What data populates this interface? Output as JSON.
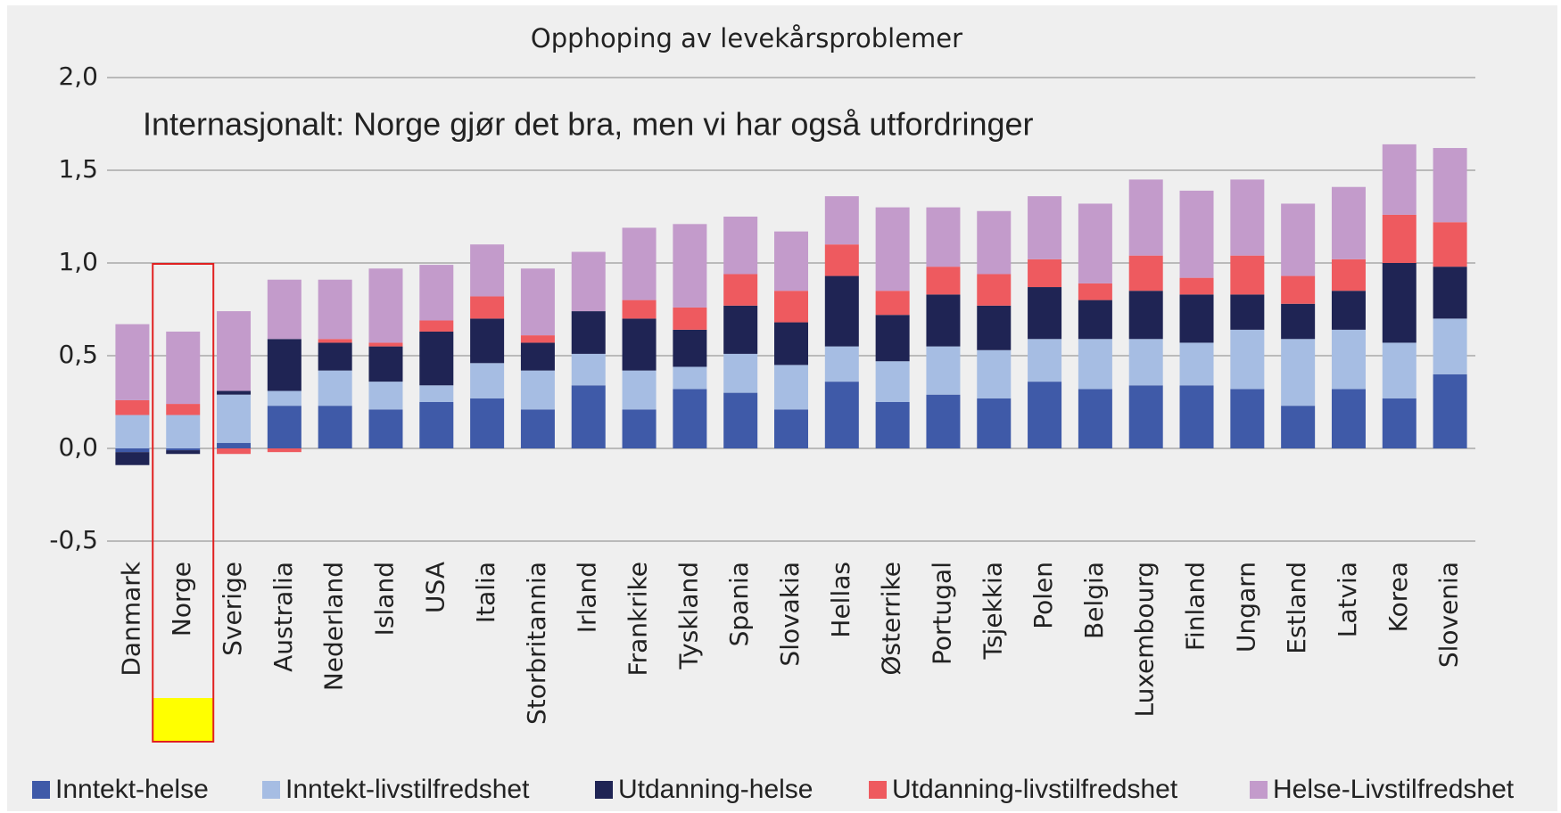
{
  "chart_data": {
    "type": "stacked_bar",
    "title": "Opphoping av levekårsproblemer",
    "annotation": "Internasjonalt: Norge gjør det bra, men vi har også utfordringer",
    "categories": [
      "Danmark",
      "Norge",
      "Sverige",
      "Australia",
      "Nederland",
      "Island",
      "USA",
      "Italia",
      "Storbritannia",
      "Irland",
      "Frankrike",
      "Tyskland",
      "Spania",
      "Slovakia",
      "Hellas",
      "Østerrike",
      "Portugal",
      "Tsjekkia",
      "Polen",
      "Belgia",
      "Luxembourg",
      "Finland",
      "Ungarn",
      "Estland",
      "Latvia",
      "Korea",
      "Slovenia"
    ],
    "series": [
      {
        "name": "Inntekt-helse",
        "color": "#3f5aa8",
        "values": [
          -0.02,
          -0.01,
          0.03,
          0.23,
          0.23,
          0.21,
          0.25,
          0.27,
          0.21,
          0.34,
          0.21,
          0.32,
          0.3,
          0.21,
          0.36,
          0.25,
          0.29,
          0.27,
          0.36,
          0.32,
          0.34,
          0.34,
          0.32,
          0.23,
          0.32,
          0.27,
          0.4
        ]
      },
      {
        "name": "Inntekt-livstilfredshet",
        "color": "#a6bde3",
        "values": [
          0.18,
          0.18,
          0.26,
          0.08,
          0.19,
          0.15,
          0.09,
          0.19,
          0.21,
          0.17,
          0.21,
          0.12,
          0.21,
          0.24,
          0.19,
          0.22,
          0.26,
          0.26,
          0.23,
          0.27,
          0.25,
          0.23,
          0.32,
          0.36,
          0.32,
          0.3,
          0.3
        ]
      },
      {
        "name": "Utdanning-helse",
        "color": "#1f2454",
        "values": [
          -0.07,
          -0.02,
          0.02,
          0.28,
          0.15,
          0.19,
          0.29,
          0.24,
          0.15,
          0.23,
          0.28,
          0.2,
          0.26,
          0.23,
          0.38,
          0.25,
          0.28,
          0.24,
          0.28,
          0.21,
          0.26,
          0.26,
          0.19,
          0.19,
          0.21,
          0.43,
          0.28
        ]
      },
      {
        "name": "Utdanning-livstilfredshet",
        "color": "#ee5a5f",
        "values": [
          0.08,
          0.06,
          -0.03,
          -0.02,
          0.02,
          0.02,
          0.06,
          0.12,
          0.04,
          0,
          0.1,
          0.12,
          0.17,
          0.17,
          0.17,
          0.13,
          0.15,
          0.17,
          0.15,
          0.09,
          0.19,
          0.09,
          0.21,
          0.15,
          0.17,
          0.26,
          0.24
        ]
      },
      {
        "name": "Helse-Livstilfredshet",
        "color": "#c39bcb",
        "values": [
          0.41,
          0.39,
          0.43,
          0.32,
          0.32,
          0.4,
          0.3,
          0.28,
          0.36,
          0.32,
          0.39,
          0.45,
          0.31,
          0.32,
          0.26,
          0.45,
          0.32,
          0.34,
          0.34,
          0.43,
          0.41,
          0.47,
          0.41,
          0.39,
          0.39,
          0.38,
          0.4
        ]
      }
    ],
    "ylim": [
      -0.5,
      2.0
    ],
    "yticks": [
      {
        "value": -0.5,
        "label": "-0,5"
      },
      {
        "value": 0,
        "label": "0,0"
      },
      {
        "value": 0.5,
        "label": "0,5"
      },
      {
        "value": 1.0,
        "label": "1,0"
      },
      {
        "value": 1.5,
        "label": "1,5"
      },
      {
        "value": 2.0,
        "label": "2,0"
      }
    ],
    "grid": true
  }
}
